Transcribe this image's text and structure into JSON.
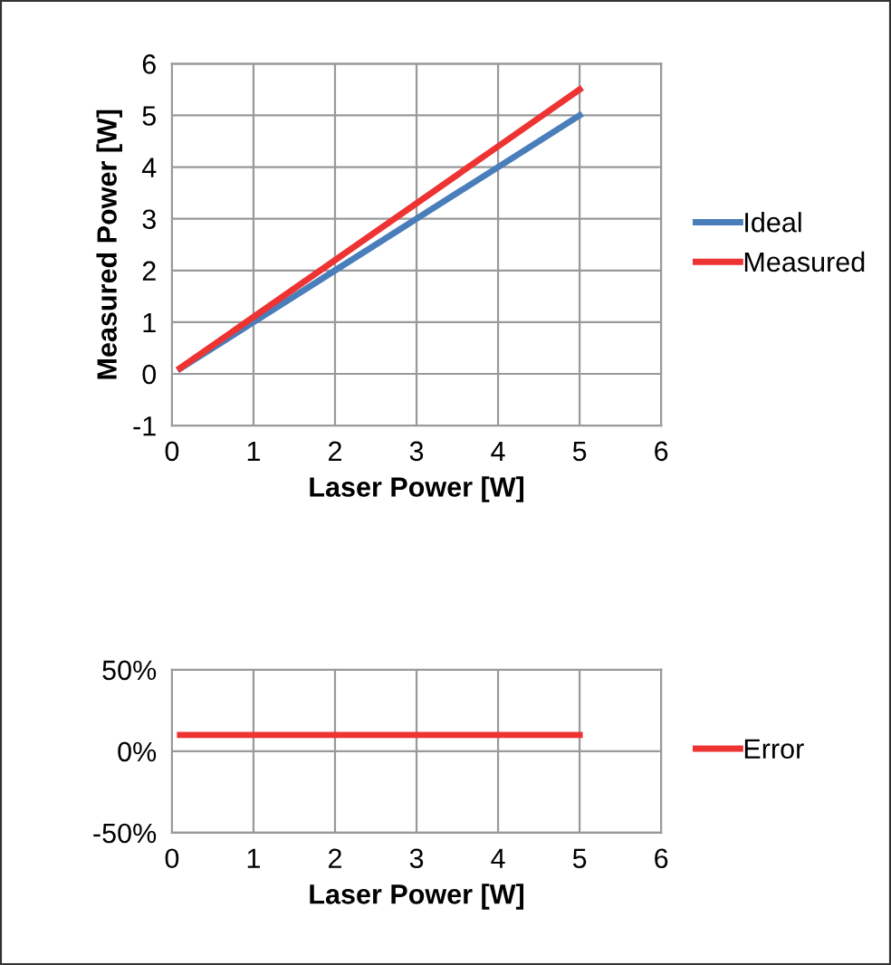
{
  "chart_data": [
    {
      "type": "line",
      "xlabel": "Laser Power [W]",
      "ylabel": "Measured Power [W]",
      "x": [
        0.1,
        1,
        2,
        3,
        4,
        5
      ],
      "series": [
        {
          "name": "Ideal",
          "color": "#4a7ebb",
          "values": [
            0.1,
            1,
            2,
            3,
            4,
            5
          ]
        },
        {
          "name": "Measured",
          "color": "#ee3333",
          "values": [
            0.11,
            1.1,
            2.2,
            3.3,
            4.4,
            5.5
          ]
        }
      ],
      "xlim": [
        0,
        6
      ],
      "xticks": [
        0,
        1,
        2,
        3,
        4,
        5,
        6
      ],
      "ylim": [
        -1,
        6
      ],
      "yticks": [
        -1,
        0,
        1,
        2,
        3,
        4,
        5,
        6
      ],
      "grid": true,
      "legend": "right",
      "marker": "none",
      "line_style": "solid"
    },
    {
      "type": "line",
      "xlabel": "Laser Power [W]",
      "x": [
        0.1,
        1,
        2,
        3,
        4,
        5
      ],
      "series": [
        {
          "name": "Error",
          "color": "#ee3333",
          "values": [
            10,
            10,
            10,
            10,
            10,
            10
          ]
        }
      ],
      "xlim": [
        0,
        6
      ],
      "xticks": [
        0,
        1,
        2,
        3,
        4,
        5,
        6
      ],
      "ylim": [
        -50,
        50
      ],
      "yticks": [
        {
          "value": -50,
          "label": "-50%"
        },
        {
          "value": 0,
          "label": "0%"
        },
        {
          "value": 50,
          "label": "50%"
        }
      ],
      "grid": true,
      "legend": "right",
      "marker": "none",
      "line_style": "solid"
    }
  ]
}
